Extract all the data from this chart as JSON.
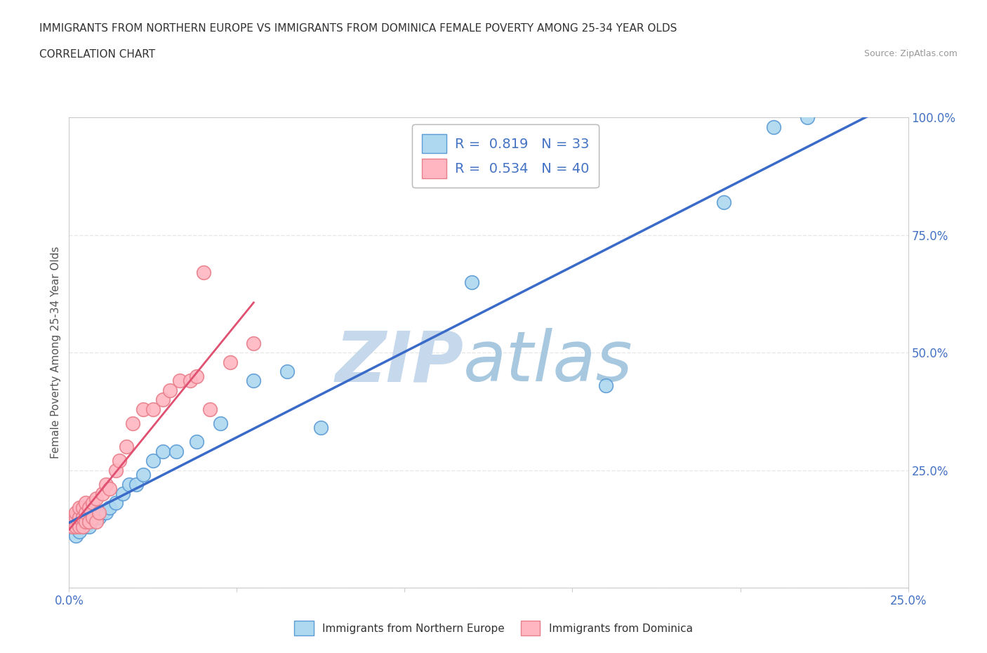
{
  "title_line1": "IMMIGRANTS FROM NORTHERN EUROPE VS IMMIGRANTS FROM DOMINICA FEMALE POVERTY AMONG 25-34 YEAR OLDS",
  "title_line2": "CORRELATION CHART",
  "source_text": "Source: ZipAtlas.com",
  "ylabel": "Female Poverty Among 25-34 Year Olds",
  "xlim": [
    0.0,
    0.25
  ],
  "ylim": [
    0.0,
    1.0
  ],
  "xticks": [
    0.0,
    0.05,
    0.1,
    0.15,
    0.2,
    0.25
  ],
  "yticks": [
    0.0,
    0.25,
    0.5,
    0.75,
    1.0
  ],
  "blue_R": 0.819,
  "blue_N": 33,
  "pink_R": 0.534,
  "pink_N": 40,
  "legend_blue_label": "R =  0.819   N = 33",
  "legend_pink_label": "R =  0.534   N = 40",
  "blue_scatter_x": [
    0.001,
    0.002,
    0.002,
    0.003,
    0.003,
    0.004,
    0.005,
    0.005,
    0.006,
    0.007,
    0.008,
    0.009,
    0.01,
    0.011,
    0.012,
    0.014,
    0.016,
    0.018,
    0.02,
    0.022,
    0.025,
    0.028,
    0.032,
    0.038,
    0.045,
    0.055,
    0.065,
    0.075,
    0.12,
    0.16,
    0.195,
    0.21,
    0.22
  ],
  "blue_scatter_y": [
    0.13,
    0.14,
    0.11,
    0.14,
    0.12,
    0.14,
    0.13,
    0.15,
    0.13,
    0.15,
    0.15,
    0.15,
    0.16,
    0.16,
    0.17,
    0.18,
    0.2,
    0.22,
    0.22,
    0.24,
    0.27,
    0.29,
    0.29,
    0.31,
    0.35,
    0.44,
    0.46,
    0.34,
    0.65,
    0.43,
    0.82,
    0.98,
    1.0
  ],
  "pink_scatter_x": [
    0.001,
    0.001,
    0.001,
    0.002,
    0.002,
    0.002,
    0.003,
    0.003,
    0.003,
    0.004,
    0.004,
    0.004,
    0.005,
    0.005,
    0.005,
    0.006,
    0.006,
    0.007,
    0.007,
    0.008,
    0.008,
    0.009,
    0.01,
    0.011,
    0.012,
    0.014,
    0.015,
    0.017,
    0.019,
    0.022,
    0.025,
    0.028,
    0.03,
    0.033,
    0.036,
    0.038,
    0.04,
    0.042,
    0.048,
    0.055
  ],
  "pink_scatter_y": [
    0.13,
    0.14,
    0.15,
    0.13,
    0.15,
    0.16,
    0.13,
    0.15,
    0.17,
    0.13,
    0.15,
    0.17,
    0.14,
    0.16,
    0.18,
    0.14,
    0.17,
    0.15,
    0.18,
    0.14,
    0.19,
    0.16,
    0.2,
    0.22,
    0.21,
    0.25,
    0.27,
    0.3,
    0.35,
    0.38,
    0.38,
    0.4,
    0.42,
    0.44,
    0.44,
    0.45,
    0.67,
    0.38,
    0.48,
    0.52
  ],
  "blue_color": "#ADD8F0",
  "pink_color": "#FFB6C1",
  "blue_edge_color": "#5B9BD5",
  "pink_edge_color": "#E87E8A",
  "blue_line_color": "#3A6BC8",
  "pink_line_color": "#E05070",
  "pink_dashed_color": "#E8A0B0",
  "watermark_zip_color": "#C5D8EC",
  "watermark_atlas_color": "#A8C8E0",
  "background_color": "#ffffff",
  "grid_color": "#E8E8E8",
  "grid_linestyle": "--",
  "title_color": "#333333",
  "source_color": "#999999",
  "axis_label_color": "#555555",
  "tick_label_color": "#4472C4",
  "legend_label_color": "#4472C4"
}
